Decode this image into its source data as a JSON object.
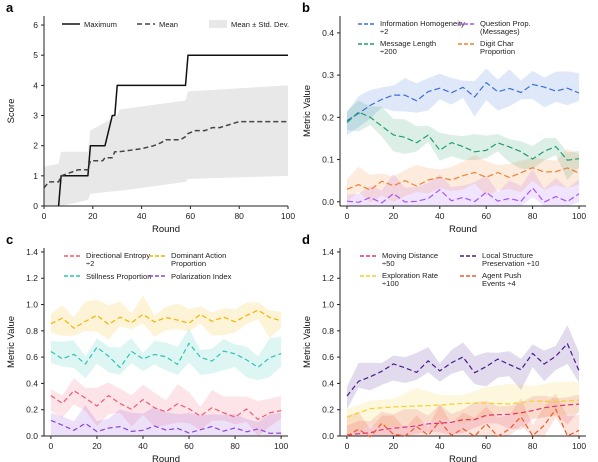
{
  "chart_data": [
    {
      "panel_letter": "a",
      "type": "line",
      "xlabel": "Round",
      "ylabel": "Score",
      "xlim": [
        0,
        100
      ],
      "ylim": [
        0,
        6.3
      ],
      "xticks": [
        "0",
        "20",
        "40",
        "60",
        "80",
        "100"
      ],
      "yticks": [
        "0",
        "1",
        "2",
        "3",
        "4",
        "5",
        "6"
      ],
      "legend_position": "top",
      "legend": [
        "Maximum",
        "Mean",
        "Mean ± Std. Dev."
      ],
      "series": [
        {
          "name": "Maximum",
          "style": "solid",
          "color": "#111111",
          "x": [
            6,
            7,
            18,
            19,
            24,
            25,
            28,
            29,
            30,
            31,
            58,
            59,
            100
          ],
          "y": [
            0,
            1,
            1,
            2,
            2,
            2,
            3,
            3,
            4,
            4,
            4,
            5,
            5
          ]
        },
        {
          "name": "Mean",
          "style": "dashed",
          "color": "#444444",
          "x": [
            0,
            2,
            6,
            7,
            14,
            18,
            19,
            24,
            25,
            28,
            29,
            30,
            31,
            40,
            45,
            48,
            50,
            56,
            58,
            59,
            62,
            66,
            69,
            72,
            76,
            80,
            100
          ],
          "y": [
            0.6,
            0.8,
            0.8,
            1.0,
            1.2,
            1.2,
            1.5,
            1.5,
            1.6,
            1.6,
            1.8,
            1.8,
            1.8,
            1.9,
            2.0,
            2.1,
            2.2,
            2.2,
            2.3,
            2.4,
            2.5,
            2.5,
            2.6,
            2.6,
            2.7,
            2.8,
            2.8
          ]
        }
      ],
      "band": {
        "name": "Mean ± Std. Dev.",
        "color": "#e8e8e8",
        "x": [
          0,
          6,
          7,
          18,
          19,
          30,
          31,
          58,
          59,
          100
        ],
        "lower": [
          0.0,
          0.0,
          0.0,
          0.2,
          0.4,
          0.5,
          0.5,
          0.8,
          0.9,
          1.0
        ],
        "upper": [
          1.3,
          1.4,
          1.8,
          1.8,
          2.5,
          3.0,
          3.2,
          3.5,
          3.8,
          4.0
        ]
      }
    },
    {
      "panel_letter": "b",
      "type": "line",
      "xlabel": "Round",
      "ylabel": "Metric Value",
      "xlim": [
        -3,
        103
      ],
      "ylim": [
        -0.01,
        0.44
      ],
      "xticks": [
        "0",
        "20",
        "40",
        "60",
        "80",
        "100"
      ],
      "yticks": [
        "0.0",
        "0.1",
        "0.2",
        "0.3",
        "0.4"
      ],
      "legend_position": "top",
      "legend": [
        "Information Homogeneity ÷2",
        "Question Prop. (Messages)",
        "Message Length ÷200",
        "Digit Char Proportion"
      ],
      "series": [
        {
          "name": "Information Homogeneity ÷2",
          "color": "#3a6fd8",
          "x": [
            0,
            5,
            10,
            15,
            20,
            25,
            30,
            35,
            40,
            45,
            50,
            55,
            60,
            65,
            70,
            75,
            80,
            85,
            90,
            95,
            100
          ],
          "y": [
            0.19,
            0.21,
            0.23,
            0.24,
            0.25,
            0.25,
            0.24,
            0.26,
            0.27,
            0.26,
            0.27,
            0.25,
            0.28,
            0.26,
            0.27,
            0.26,
            0.28,
            0.27,
            0.26,
            0.27,
            0.26
          ]
        },
        {
          "name": "Question Prop. (Messages)",
          "color": "#a855f7",
          "x": [
            0,
            5,
            10,
            15,
            20,
            25,
            30,
            35,
            40,
            45,
            50,
            55,
            60,
            65,
            70,
            75,
            80,
            85,
            90,
            95,
            100
          ],
          "y": [
            0.0,
            0.0,
            0.01,
            0.0,
            0.02,
            0.0,
            0.0,
            0.01,
            0.03,
            0.0,
            0.01,
            0.0,
            0.02,
            0.0,
            0.01,
            0.0,
            0.03,
            0.0,
            0.01,
            0.0,
            0.02
          ]
        },
        {
          "name": "Message Length ÷200",
          "color": "#1f9e6a",
          "x": [
            0,
            5,
            10,
            15,
            20,
            25,
            30,
            35,
            40,
            45,
            50,
            55,
            60,
            65,
            70,
            75,
            80,
            85,
            90,
            95,
            100
          ],
          "y": [
            0.19,
            0.21,
            0.2,
            0.18,
            0.16,
            0.15,
            0.14,
            0.16,
            0.12,
            0.14,
            0.13,
            0.12,
            0.12,
            0.14,
            0.13,
            0.12,
            0.1,
            0.12,
            0.13,
            0.1,
            0.1
          ]
        },
        {
          "name": "Digit Char Proportion",
          "color": "#f08030",
          "x": [
            0,
            5,
            10,
            15,
            20,
            25,
            30,
            35,
            40,
            45,
            50,
            55,
            60,
            65,
            70,
            75,
            80,
            85,
            90,
            95,
            100
          ],
          "y": [
            0.03,
            0.04,
            0.03,
            0.05,
            0.04,
            0.05,
            0.04,
            0.05,
            0.06,
            0.05,
            0.06,
            0.07,
            0.06,
            0.07,
            0.06,
            0.07,
            0.08,
            0.07,
            0.07,
            0.08,
            0.07
          ]
        }
      ]
    },
    {
      "panel_letter": "c",
      "type": "line",
      "xlabel": "Round",
      "ylabel": "Metric Value",
      "xlim": [
        -3,
        103
      ],
      "ylim": [
        0,
        1.43
      ],
      "xticks": [
        "0",
        "20",
        "40",
        "60",
        "80",
        "100"
      ],
      "yticks": [
        "0.0",
        "0.2",
        "0.4",
        "0.6",
        "0.8",
        "1.0",
        "1.2",
        "1.4"
      ],
      "legend_position": "top",
      "legend": [
        "Directional Entropy ÷2",
        "Dominant Action Proportion",
        "Stillness Proportion",
        "Polarization Index"
      ],
      "series": [
        {
          "name": "Directional Entropy ÷2",
          "color": "#f05a6e",
          "x": [
            0,
            5,
            10,
            15,
            20,
            25,
            30,
            35,
            40,
            45,
            50,
            55,
            60,
            65,
            70,
            75,
            80,
            85,
            90,
            95,
            100
          ],
          "y": [
            0.3,
            0.25,
            0.35,
            0.28,
            0.22,
            0.3,
            0.25,
            0.2,
            0.28,
            0.22,
            0.18,
            0.25,
            0.2,
            0.15,
            0.22,
            0.18,
            0.15,
            0.2,
            0.12,
            0.18,
            0.2
          ]
        },
        {
          "name": "Dominant Action Proportion",
          "color": "#f2b400",
          "x": [
            0,
            5,
            10,
            15,
            20,
            25,
            30,
            35,
            40,
            45,
            50,
            55,
            60,
            65,
            70,
            75,
            80,
            85,
            90,
            95,
            100
          ],
          "y": [
            0.85,
            0.9,
            0.82,
            0.88,
            0.92,
            0.85,
            0.9,
            0.87,
            0.93,
            0.86,
            0.9,
            0.88,
            0.85,
            0.92,
            0.88,
            0.9,
            0.86,
            0.92,
            0.95,
            0.9,
            0.88
          ]
        },
        {
          "name": "Stillness Proportion",
          "color": "#2ec4b6",
          "x": [
            0,
            5,
            10,
            15,
            20,
            25,
            30,
            35,
            40,
            45,
            50,
            55,
            60,
            65,
            70,
            75,
            80,
            85,
            90,
            95,
            100
          ],
          "y": [
            0.65,
            0.58,
            0.62,
            0.55,
            0.68,
            0.6,
            0.52,
            0.65,
            0.58,
            0.62,
            0.6,
            0.55,
            0.7,
            0.6,
            0.57,
            0.65,
            0.62,
            0.58,
            0.52,
            0.6,
            0.62
          ]
        },
        {
          "name": "Polarization Index",
          "color": "#8e44d9",
          "x": [
            0,
            5,
            10,
            15,
            20,
            25,
            30,
            35,
            40,
            45,
            50,
            55,
            60,
            65,
            70,
            75,
            80,
            85,
            90,
            95,
            100
          ],
          "y": [
            0.12,
            0.08,
            0.05,
            0.1,
            0.04,
            0.06,
            0.08,
            0.03,
            0.05,
            0.07,
            0.04,
            0.06,
            0.03,
            0.05,
            0.08,
            0.04,
            0.06,
            0.03,
            0.05,
            0.02,
            0.03
          ]
        }
      ]
    },
    {
      "panel_letter": "d",
      "type": "line",
      "xlabel": "Round",
      "ylabel": "Metric Value",
      "xlim": [
        -3,
        103
      ],
      "ylim": [
        0,
        1.43
      ],
      "xticks": [
        "0",
        "20",
        "40",
        "60",
        "80",
        "100"
      ],
      "yticks": [
        "0.0",
        "0.2",
        "0.4",
        "0.6",
        "0.8",
        "1.0",
        "1.2",
        "1.4"
      ],
      "legend_position": "top",
      "legend": [
        "Moving Distance ÷50",
        "Local Structure Preservation ÷10",
        "Exploration Rate ÷100",
        "Agent Push Events ÷4"
      ],
      "series": [
        {
          "name": "Moving Distance ÷50",
          "color": "#e0336e",
          "x": [
            0,
            5,
            10,
            15,
            20,
            25,
            30,
            35,
            40,
            45,
            50,
            55,
            60,
            65,
            70,
            75,
            80,
            85,
            90,
            95,
            100
          ],
          "y": [
            0.0,
            0.02,
            0.03,
            0.04,
            0.05,
            0.06,
            0.08,
            0.09,
            0.1,
            0.11,
            0.12,
            0.13,
            0.15,
            0.16,
            0.17,
            0.18,
            0.2,
            0.21,
            0.22,
            0.24,
            0.25
          ]
        },
        {
          "name": "Local Structure Preservation ÷10",
          "color": "#4b1a8c",
          "x": [
            0,
            5,
            10,
            15,
            20,
            25,
            30,
            35,
            40,
            45,
            50,
            55,
            60,
            65,
            70,
            75,
            80,
            85,
            90,
            95,
            100
          ],
          "y": [
            0.3,
            0.42,
            0.45,
            0.5,
            0.55,
            0.52,
            0.48,
            0.58,
            0.5,
            0.55,
            0.6,
            0.48,
            0.52,
            0.58,
            0.55,
            0.5,
            0.62,
            0.55,
            0.6,
            0.7,
            0.5
          ]
        },
        {
          "name": "Exploration Rate ÷100",
          "color": "#f5d02a",
          "x": [
            0,
            10,
            20,
            30,
            40,
            50,
            60,
            70,
            80,
            90,
            100
          ],
          "y": [
            0.15,
            0.2,
            0.22,
            0.23,
            0.24,
            0.24,
            0.25,
            0.25,
            0.26,
            0.26,
            0.27
          ]
        },
        {
          "name": "Agent Push Events ÷4",
          "color": "#f0582a",
          "x": [
            0,
            5,
            10,
            15,
            20,
            25,
            30,
            35,
            40,
            45,
            50,
            55,
            60,
            65,
            70,
            75,
            80,
            85,
            90,
            95,
            100
          ],
          "y": [
            0.0,
            0.05,
            0.0,
            0.1,
            0.02,
            0.0,
            0.08,
            0.0,
            0.12,
            0.0,
            0.05,
            0.0,
            0.1,
            0.0,
            0.06,
            0.15,
            0.0,
            0.08,
            0.2,
            0.0,
            0.05
          ]
        }
      ]
    }
  ]
}
